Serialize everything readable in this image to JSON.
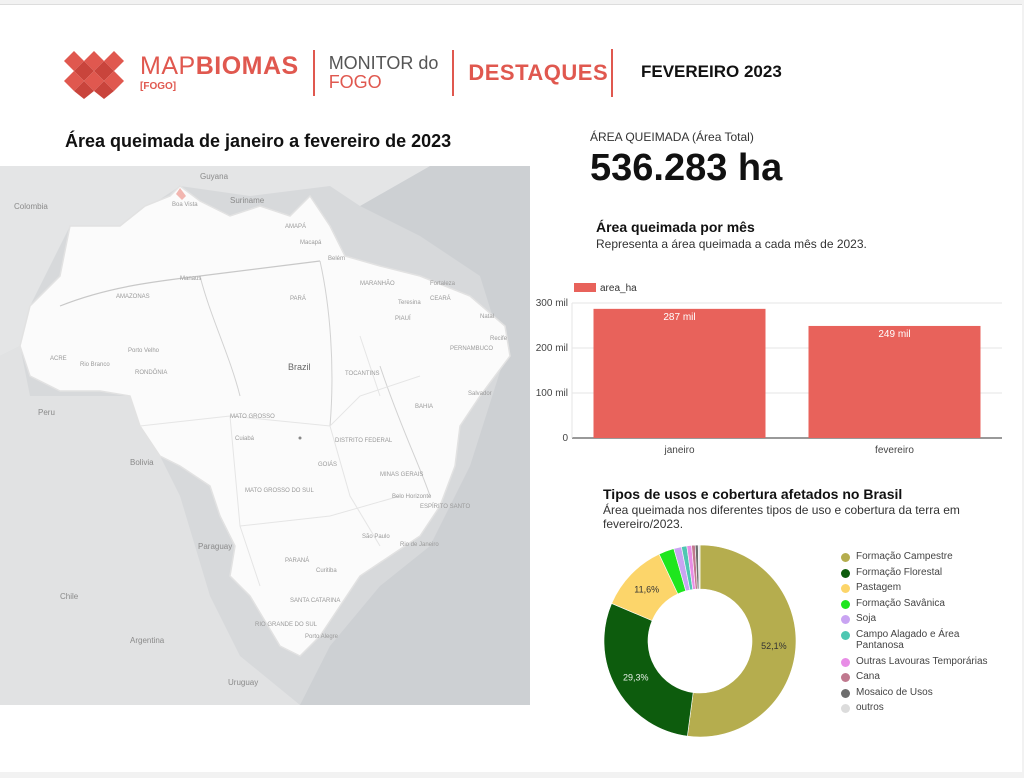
{
  "header": {
    "brand_thin": "MAP",
    "brand_bold": "BIOMAS",
    "brand_sub": "[FOGO]",
    "monitor_line1": "MONITOR do",
    "monitor_line2": "FOGO",
    "section": "DESTAQUES",
    "period": "FEVEREIRO 2023"
  },
  "map": {
    "title": "Área queimada de janeiro a fevereiro de 2023",
    "labels": {
      "colombia": "Colombia",
      "guyana": "Guyana",
      "suriname": "Suriname",
      "boavista": "Boa Vista",
      "amapa": "AMAPÁ",
      "macapa": "Macapá",
      "belem": "Belém",
      "manaus": "Manaus",
      "amazonas": "AMAZONAS",
      "para": "PARÁ",
      "maranhao": "MARANHÃO",
      "ceara": "CEARÁ",
      "fortaleza": "Fortaleza",
      "teresina": "Teresina",
      "piaui": "PIAUÍ",
      "natal": "Natal",
      "pernambuco": "PERNAMBUCO",
      "recife": "Recife",
      "acre": "ACRE",
      "riobranco": "Rio Branco",
      "portovelho": "Porto Velho",
      "rondonia": "RONDÔNIA",
      "brazil": "Brazil",
      "tocantins": "TOCANTINS",
      "bahia": "BAHIA",
      "salvador": "Salvador",
      "peru": "Peru",
      "matogrosso": "MATO GROSSO",
      "cuiaba": "Cuiabá",
      "distrito": "DISTRITO FEDERAL",
      "bolivia": "Bolivia",
      "goias": "GOIÁS",
      "minas": "MINAS GERAIS",
      "belohorizonte": "Belo Horizonte",
      "ms": "MATO GROSSO DO SUL",
      "riodejaneiro": "Rio de Janeiro",
      "saopaulo": "São Paulo",
      "paraguay": "Paraguay",
      "parana": "PARANÁ",
      "curitiba": "Curitiba",
      "chile": "Chile",
      "santacatarina": "SANTA CATARINA",
      "rs": "RIO GRANDE DO SUL",
      "portoalegre": "Porto Alegre",
      "uruguay": "Uruguay",
      "arg": "Argentina",
      "espirito": "ESPÍRITO SANTO"
    }
  },
  "kpi": {
    "label": "ÁREA QUEIMADA (Área Total)",
    "value": "536.283 ha"
  },
  "bar_section": {
    "title": "Área queimada por mês",
    "subtitle": "Representa a área queimada a cada mês de 2023."
  },
  "donut_section": {
    "title": "Tipos de usos e cobertura afetados no Brasil",
    "subtitle": "Área queimada nos diferentes tipos de uso e cobertura da terra em fevereiro/2023."
  },
  "chart_data": [
    {
      "type": "bar",
      "categories": [
        "janeiro",
        "fevereiro"
      ],
      "series": [
        {
          "name": "area_ha",
          "values": [
            287,
            249
          ],
          "color": "#e8625b"
        }
      ],
      "data_labels": [
        "287 mil",
        "249 mil"
      ],
      "y_ticks": [
        "0",
        "100 mil",
        "200 mil",
        "300 mil"
      ],
      "ylim": [
        0,
        300
      ],
      "grid": true,
      "legend": "top-left"
    },
    {
      "type": "pie",
      "donut": true,
      "labels": [
        "Formação Campestre",
        "Formação Florestal",
        "Pastagem",
        "Formação Savânica",
        "Soja",
        "Campo Alagado e Área Pantanosa",
        "Outras Lavouras Temporárias",
        "Cana",
        "Mosaico de Usos",
        "outros"
      ],
      "values": [
        52.1,
        29.3,
        11.6,
        2.6,
        1.3,
        0.9,
        0.8,
        0.6,
        0.5,
        0.3
      ],
      "slice_labels": [
        "52,1%",
        "29,3%",
        "11,6%",
        "",
        "",
        "",
        "",
        "",
        "",
        ""
      ],
      "colors": [
        "#b5ad4e",
        "#0d5c0d",
        "#fcd56a",
        "#1ee61e",
        "#c9a4f2",
        "#4fc7b2",
        "#e88de6",
        "#c0798f",
        "#6d6d6d",
        "#dcdcdc"
      ],
      "legend": "right"
    }
  ]
}
